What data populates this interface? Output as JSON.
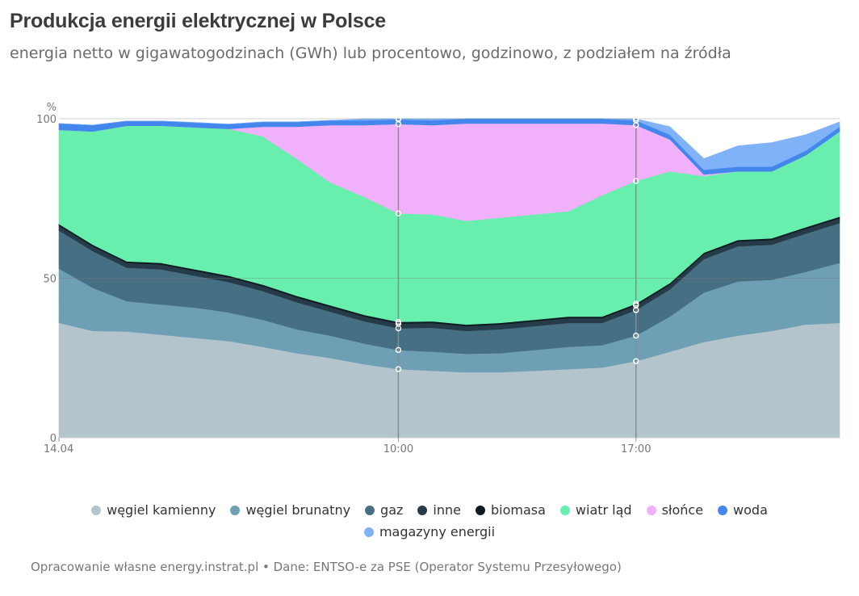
{
  "title": "Produkcja energii elektrycznej w Polsce",
  "subtitle": "energia netto w gigawatogodzinach (GWh) lub procentowo, godzinowo, z podziałem na źródła",
  "source": "Opracowanie własne energy.instrat.pl • Dane: ENTSO-e za PSE (Operator Systemu Przesyłowego)",
  "chart_data": {
    "type": "area",
    "stacked": true,
    "y_unit_label": "%",
    "ylim": [
      0,
      100
    ],
    "y_ticks": [
      0,
      50,
      100
    ],
    "x": [
      0,
      1,
      2,
      3,
      4,
      5,
      6,
      7,
      8,
      9,
      10,
      11,
      12,
      13,
      14,
      15,
      16,
      17,
      18,
      19,
      20,
      21,
      22,
      23
    ],
    "x_tick_labels": [
      {
        "x": 0,
        "label": "14.04"
      },
      {
        "x": 10,
        "label": "10:00"
      },
      {
        "x": 17,
        "label": "17:00"
      }
    ],
    "highlight_x": [
      10,
      17
    ],
    "grid": true,
    "legend_position": "bottom",
    "series": [
      {
        "name": "węgiel kamienny",
        "color": "#b4c4cc",
        "values": [
          36,
          33.5,
          33.3,
          32.3,
          31.3,
          30.3,
          28.5,
          26.5,
          25,
          23,
          21.5,
          21,
          20.5,
          20.5,
          21,
          21.5,
          22,
          24,
          27,
          30,
          32,
          33.5,
          35.5,
          36
        ]
      },
      {
        "name": "węgiel brunatny",
        "color": "#6f9fb5",
        "values": [
          17,
          13.5,
          9.5,
          9.5,
          9.5,
          9,
          8.5,
          7.5,
          7,
          6.5,
          6,
          6,
          5.8,
          6,
          6.5,
          7,
          7,
          8,
          11,
          15.5,
          17,
          16,
          16.5,
          18.8
        ]
      },
      {
        "name": "gaz",
        "color": "#476f84",
        "values": [
          12,
          11.5,
          10.5,
          11,
          10,
          9.5,
          9,
          8.5,
          7.5,
          7,
          6.8,
          7.5,
          7.2,
          7.5,
          7.5,
          7.5,
          7,
          8,
          8.5,
          10.5,
          11,
          11,
          12,
          12.5
        ]
      },
      {
        "name": "inne",
        "color": "#263b48",
        "values": [
          1.5,
          1.5,
          1.5,
          1.5,
          1.5,
          1.5,
          1.5,
          1.5,
          1.5,
          1.5,
          1.5,
          1.5,
          1.5,
          1.5,
          1.5,
          1.5,
          1.5,
          1.5,
          1.5,
          1.5,
          1.5,
          1.5,
          1.5,
          1.5
        ]
      },
      {
        "name": "biomasa",
        "color": "#0f1a22",
        "values": [
          0.5,
          0.5,
          0.5,
          0.5,
          0.5,
          0.5,
          0.5,
          0.5,
          0.5,
          0.5,
          0.5,
          0.5,
          0.5,
          0.5,
          0.5,
          0.5,
          0.5,
          0.5,
          0.5,
          0.5,
          0.5,
          0.5,
          0.5,
          0.5
        ]
      },
      {
        "name": "wiatr ląd",
        "color": "#68eead",
        "values": [
          29.5,
          35.5,
          42.5,
          43,
          44.5,
          46,
          46.5,
          43,
          38.5,
          37,
          34,
          33.5,
          32.5,
          33,
          33,
          33,
          38,
          38.5,
          35,
          24,
          21.5,
          21,
          22.5,
          26.7
        ]
      },
      {
        "name": "słońce",
        "color": "#f0b1fa",
        "values": [
          0,
          0,
          0,
          0,
          0,
          0,
          3,
          10,
          18,
          22.5,
          28,
          28,
          30.5,
          29.5,
          28.5,
          27.5,
          22.5,
          17.5,
          10,
          0.5,
          0,
          0,
          0,
          0
        ]
      },
      {
        "name": "woda",
        "color": "#4487ec",
        "values": [
          2,
          2,
          1.5,
          1.5,
          1.5,
          1.5,
          1.5,
          1.5,
          1.5,
          1.5,
          1.5,
          1.5,
          1.5,
          1.5,
          1.5,
          1.5,
          1.5,
          1.5,
          1.5,
          1.5,
          1.5,
          1.5,
          1.5,
          1.5
        ]
      },
      {
        "name": "magazyny energii",
        "color": "#80b2f8",
        "values": [
          0,
          0,
          0,
          0,
          0,
          0,
          0,
          0,
          0,
          0.5,
          0.2,
          1,
          0,
          0,
          0,
          0,
          0,
          0.5,
          2.5,
          3.5,
          6.5,
          7.5,
          5,
          1.5
        ]
      }
    ]
  }
}
